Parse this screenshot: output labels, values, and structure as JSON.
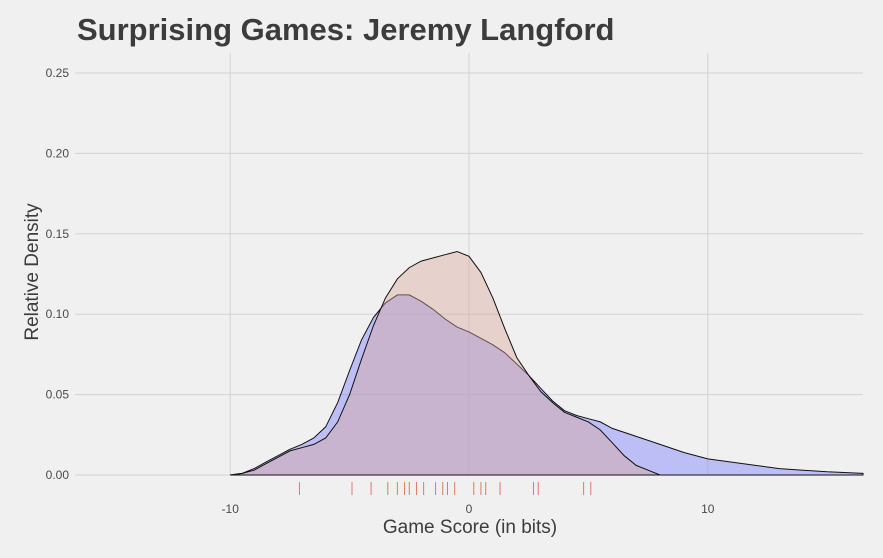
{
  "chart_data": {
    "type": "area",
    "title": "Surprising Games: Jeremy Langford",
    "xlabel": "Game Score (in bits)",
    "ylabel": "Relative Density",
    "xlim": [
      -16.5,
      16.5
    ],
    "ylim": [
      0,
      0.25
    ],
    "x_ticks": [
      -10,
      0,
      10
    ],
    "x_tick_labels": [
      "-10",
      "0",
      "10"
    ],
    "y_ticks": [
      0.0,
      0.05,
      0.1,
      0.15,
      0.2,
      0.25
    ],
    "y_tick_labels": [
      "0.00",
      "0.05",
      "0.10",
      "0.15",
      "0.20",
      "0.25"
    ],
    "grid": true,
    "legend": "none",
    "series": [
      {
        "fill": "#7a7aff",
        "fill_opacity": 0.42,
        "points": [
          [
            -10,
            0
          ],
          [
            -9.5,
            0.001
          ],
          [
            -9,
            0.004
          ],
          [
            -8.5,
            0.008
          ],
          [
            -8,
            0.012
          ],
          [
            -7.5,
            0.016
          ],
          [
            -7,
            0.019
          ],
          [
            -6.5,
            0.023
          ],
          [
            -6,
            0.03
          ],
          [
            -5.5,
            0.045
          ],
          [
            -5,
            0.065
          ],
          [
            -4.5,
            0.084
          ],
          [
            -4,
            0.098
          ],
          [
            -3.5,
            0.107
          ],
          [
            -3,
            0.112
          ],
          [
            -2.5,
            0.112
          ],
          [
            -2,
            0.108
          ],
          [
            -1.5,
            0.103
          ],
          [
            -1,
            0.097
          ],
          [
            -0.5,
            0.092
          ],
          [
            0,
            0.089
          ],
          [
            0.5,
            0.085
          ],
          [
            1,
            0.081
          ],
          [
            1.5,
            0.076
          ],
          [
            2,
            0.069
          ],
          [
            2.5,
            0.062
          ],
          [
            3,
            0.054
          ],
          [
            3.5,
            0.046
          ],
          [
            4,
            0.04
          ],
          [
            4.5,
            0.037
          ],
          [
            5,
            0.035
          ],
          [
            5.5,
            0.033
          ],
          [
            6,
            0.029
          ],
          [
            7,
            0.024
          ],
          [
            8,
            0.019
          ],
          [
            9,
            0.014
          ],
          [
            10,
            0.01
          ],
          [
            11,
            0.008
          ],
          [
            12,
            0.006
          ],
          [
            13,
            0.004
          ],
          [
            14,
            0.003
          ],
          [
            15,
            0.002
          ],
          [
            16.5,
            0.001
          ]
        ]
      },
      {
        "fill": "#d9a89c",
        "fill_opacity": 0.42,
        "points": [
          [
            -10,
            0
          ],
          [
            -9.5,
            0.001
          ],
          [
            -9,
            0.003
          ],
          [
            -8.5,
            0.007
          ],
          [
            -8,
            0.011
          ],
          [
            -7.5,
            0.015
          ],
          [
            -7,
            0.017
          ],
          [
            -6.5,
            0.019
          ],
          [
            -6,
            0.023
          ],
          [
            -5.5,
            0.033
          ],
          [
            -5,
            0.05
          ],
          [
            -4.5,
            0.072
          ],
          [
            -4,
            0.093
          ],
          [
            -3.5,
            0.11
          ],
          [
            -3,
            0.122
          ],
          [
            -2.5,
            0.129
          ],
          [
            -2,
            0.133
          ],
          [
            -1.5,
            0.135
          ],
          [
            -1,
            0.137
          ],
          [
            -0.5,
            0.139
          ],
          [
            0,
            0.136
          ],
          [
            0.5,
            0.126
          ],
          [
            1,
            0.11
          ],
          [
            1.5,
            0.091
          ],
          [
            2,
            0.073
          ],
          [
            2.5,
            0.062
          ],
          [
            3,
            0.052
          ],
          [
            3.5,
            0.045
          ],
          [
            4,
            0.039
          ],
          [
            4.5,
            0.036
          ],
          [
            5,
            0.033
          ],
          [
            5.5,
            0.028
          ],
          [
            6,
            0.02
          ],
          [
            6.5,
            0.012
          ],
          [
            7,
            0.006
          ],
          [
            7.5,
            0.003
          ],
          [
            8,
            0
          ]
        ]
      }
    ],
    "rug": {
      "color": "#e07a5f",
      "values": [
        -7.1,
        -4.9,
        -4.1,
        -3.4,
        -3.0,
        -2.7,
        -2.5,
        -2.2,
        -1.9,
        -1.4,
        -1.1,
        -0.9,
        -0.6,
        0.2,
        0.5,
        0.7,
        1.3,
        2.7,
        2.9,
        4.8,
        5.1
      ]
    }
  }
}
